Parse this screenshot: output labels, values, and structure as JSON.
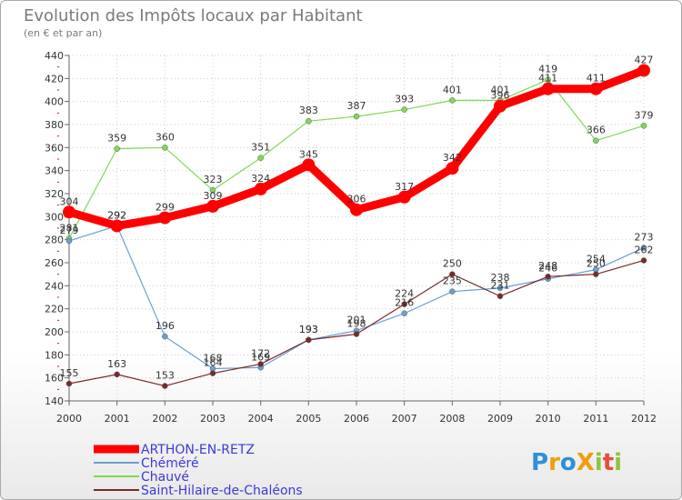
{
  "chart_data": {
    "type": "line",
    "title": "Evolution des Impôts locaux par Habitant",
    "subtitle": "(en € et par an)",
    "x": [
      "2000",
      "2001",
      "2002",
      "2003",
      "2004",
      "2005",
      "2006",
      "2007",
      "2008",
      "2009",
      "2010",
      "2011",
      "2012"
    ],
    "ylim": [
      140,
      440
    ],
    "yticks": [
      140,
      160,
      180,
      200,
      220,
      240,
      260,
      280,
      300,
      320,
      340,
      360,
      380,
      400,
      420,
      440
    ],
    "grid": true,
    "legend_position": "bottom-left",
    "series": [
      {
        "name": "ARTHON-EN-RETZ",
        "color": "#ff0000",
        "values": [
          304,
          292,
          299,
          309,
          324,
          345,
          306,
          317,
          342,
          396,
          411,
          411,
          427
        ]
      },
      {
        "name": "Chéméré",
        "color": "#6b9fd4",
        "values": [
          279,
          292,
          196,
          168,
          169,
          193,
          201,
          216,
          235,
          238,
          246,
          254,
          273
        ]
      },
      {
        "name": "Chauvé",
        "color": "#7ed957",
        "values": [
          281,
          359,
          360,
          323,
          351,
          383,
          387,
          393,
          401,
          401,
          419,
          366,
          379
        ]
      },
      {
        "name": "Saint-Hilaire-de-Chaléons",
        "color": "#7a2a2a",
        "values": [
          155,
          163,
          153,
          164,
          172,
          193,
          198,
          224,
          250,
          231,
          248,
          250,
          262
        ]
      }
    ]
  },
  "logo": {
    "text": "ProXiti",
    "letters": [
      "P",
      "r",
      "o",
      "X",
      "i",
      "t",
      "i"
    ],
    "colors": [
      "#2f8fd8",
      "#f39c12",
      "#2f8fd8",
      "#f39c12",
      "#8cc63f",
      "#e74c3c",
      "#8cc63f"
    ]
  }
}
